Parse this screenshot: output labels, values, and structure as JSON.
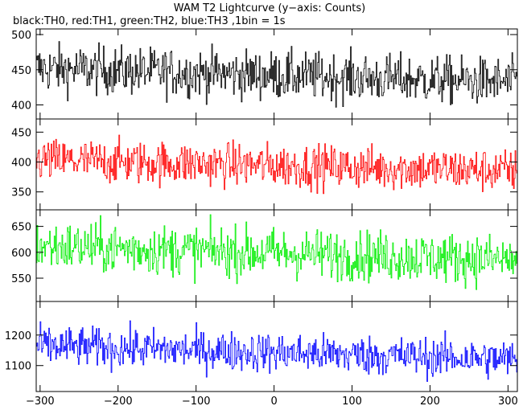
{
  "chart_data": {
    "type": "line",
    "title": "WAM T2 Lightcurve (y−axis: Counts)",
    "subtitle": "black:TH0, red:TH1, green:TH2, blue:TH3 ,1bin = 1s",
    "xlabel": "",
    "xlim": [
      -305,
      312
    ],
    "x_ticks": [
      -300,
      -200,
      -100,
      0,
      100,
      200,
      300
    ],
    "x_tick_labels": [
      "−300",
      "−200",
      "−100",
      "0",
      "100",
      "200",
      "300"
    ],
    "bin_seconds": 1,
    "grid": false,
    "panels": [
      {
        "series_name": "TH0",
        "color": "#000000",
        "ylim": [
          380,
          508
        ],
        "y_ticks": [
          400,
          450,
          500
        ],
        "level_start": 452,
        "level_end": 432,
        "spread": 17
      },
      {
        "series_name": "TH1",
        "color": "#ff0000",
        "ylim": [
          320,
          472
        ],
        "y_ticks": [
          350,
          400,
          450
        ],
        "level_start": 403,
        "level_end": 385,
        "spread": 18
      },
      {
        "series_name": "TH2",
        "color": "#00ee00",
        "ylim": [
          505,
          682
        ],
        "y_ticks": [
          550,
          600,
          650
        ],
        "level_start": 612,
        "level_end": 585,
        "spread": 24
      },
      {
        "series_name": "TH3",
        "color": "#0000ff",
        "ylim": [
          1015,
          1310
        ],
        "y_ticks": [
          1100,
          1200
        ],
        "level_start": 1165,
        "level_end": 1120,
        "spread": 32
      }
    ]
  }
}
